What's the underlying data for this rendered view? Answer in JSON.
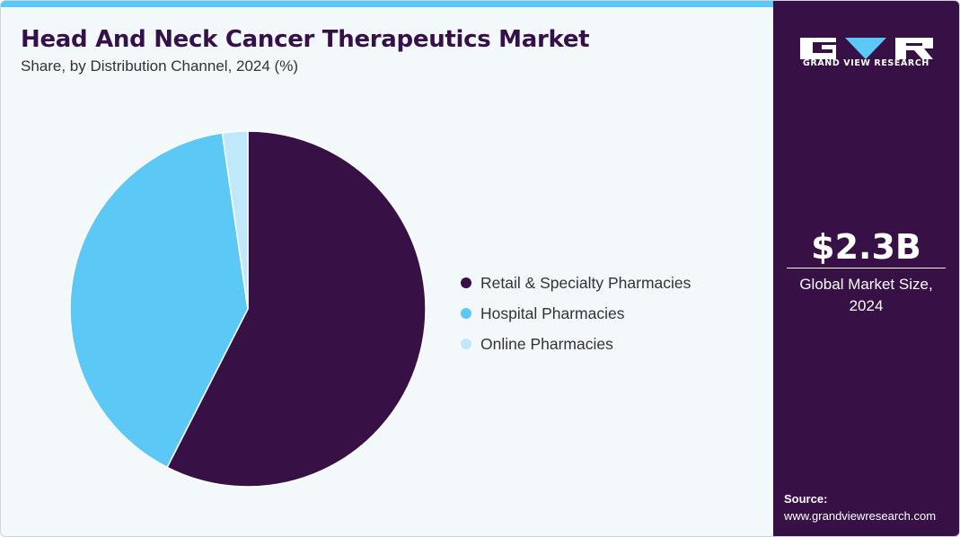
{
  "header": {
    "title": "Head And Neck Cancer Therapeutics Market",
    "subtitle": "Share, by Distribution Channel, 2024 (%)"
  },
  "chart_data": {
    "type": "pie",
    "title": "Head And Neck Cancer Therapeutics Market",
    "subtitle": "Share, by Distribution Channel, 2024 (%)",
    "categories": [
      "Retail & Specialty Pharmacies",
      "Hospital Pharmacies",
      "Online Pharmacies"
    ],
    "values": [
      57.5,
      40.2,
      2.3
    ],
    "colors": [
      "#371046",
      "#5bc8f5",
      "#bfe9fb"
    ],
    "legend_position": "right"
  },
  "sidebar": {
    "logo_text": "GRAND VIEW RESEARCH",
    "market_value": "$2.3B",
    "market_label": "Global Market Size, 2024",
    "source_label": "Source:",
    "source_url": "www.grandviewresearch.com"
  },
  "colors": {
    "brand_dark": "#371046",
    "accent_light_blue": "#5bc8f5",
    "background": "#f3f8fb"
  }
}
